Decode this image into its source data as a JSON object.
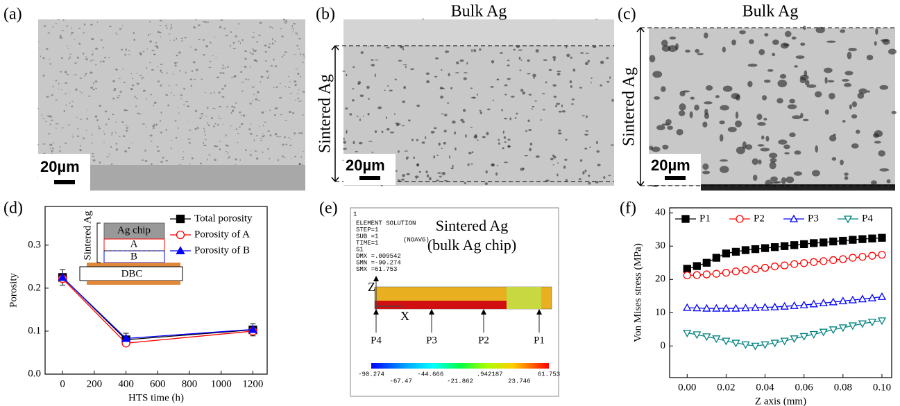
{
  "panels": {
    "a": {
      "label": "(a)",
      "scale": "20µm"
    },
    "b": {
      "label": "(b)",
      "top": "Bulk Ag",
      "side": "Sintered Ag",
      "scale": "20µm"
    },
    "c": {
      "label": "(c)",
      "top": "Bulk Ag",
      "side": "Sintered Ag",
      "scale": "20µm"
    },
    "d": {
      "label": "(d)"
    },
    "e": {
      "label": "(e)",
      "corner": "1",
      "solution": [
        "ELEMENT SOLUTION",
        "STEP=1",
        "SUB =1",
        "TIME=1",
        "S1",
        "DMX =.009542",
        "SMN =-90.274",
        "SMX =61.753"
      ],
      "noavg": "(NOAVG)",
      "title": [
        "Sintered Ag",
        "(bulk Ag chip)"
      ],
      "axes": [
        "Z",
        "X"
      ],
      "points": [
        "P4",
        "P3",
        "P2",
        "P1"
      ],
      "scale_top": [
        "-90.274",
        "-44.666",
        ".942187",
        "61.753"
      ],
      "scale_bottom": [
        "-67.47",
        "-21.862",
        "23.746"
      ]
    },
    "f": {
      "label": "(f)"
    }
  },
  "chart_data": [
    {
      "type": "line",
      "x_label": "HTS time (h)",
      "y_label": "Porosity",
      "x": [
        0,
        400,
        1200
      ],
      "xlim": [
        -110,
        1290
      ],
      "xticks": [
        0,
        200,
        400,
        600,
        800,
        1000,
        1200
      ],
      "ylim": [
        0,
        0.39
      ],
      "yticks": [
        {
          "value": 0,
          "label": "0.0"
        },
        0.1,
        0.2,
        0.3
      ],
      "legend": "top-right",
      "annotations": {
        "chip": "Ag chip",
        "a": "A",
        "b": "B",
        "dbc": "DBC",
        "layer": "Sintered Ag"
      },
      "series": [
        {
          "name": "Total porosity",
          "color": "#000000",
          "marker": "square",
          "filled": true,
          "values": [
            0.225,
            0.08,
            0.103
          ],
          "errors": [
            0.018,
            0.015,
            0.014
          ]
        },
        {
          "name": "Porosity of A",
          "color": "#ff0000",
          "marker": "circle",
          "filled": false,
          "values": [
            0.222,
            0.072,
            0.1
          ]
        },
        {
          "name": "Porosity of B",
          "color": "#0000ff",
          "marker": "triangle-up",
          "filled": true,
          "values": [
            0.225,
            0.083,
            0.104
          ]
        }
      ]
    },
    {
      "type": "line",
      "x_label": "Z axis (mm)",
      "y_label": "Von Mises stress (MPa)",
      "x": [
        0,
        0.005,
        0.01,
        0.015,
        0.02,
        0.025,
        0.03,
        0.035,
        0.04,
        0.045,
        0.05,
        0.055,
        0.06,
        0.065,
        0.07,
        0.075,
        0.08,
        0.085,
        0.09,
        0.095,
        0.1
      ],
      "xlim": [
        -0.009,
        0.105
      ],
      "xticks": [
        {
          "value": 0,
          "label": "0.00"
        },
        0.02,
        0.04,
        0.06,
        0.08,
        {
          "value": 0.1,
          "label": "0.10"
        }
      ],
      "ylim": [
        -9.5,
        41.5
      ],
      "yticks": [
        0,
        10,
        20,
        30,
        40
      ],
      "legend": "top",
      "series": [
        {
          "name": "P1",
          "color": "#000000",
          "marker": "square",
          "filled": true,
          "values": [
            23.2,
            24,
            25,
            26.5,
            27.8,
            28.3,
            28.8,
            29.1,
            29.4,
            29.7,
            30,
            30.3,
            30.6,
            30.9,
            31.1,
            31.4,
            31.6,
            31.9,
            32.1,
            32.3,
            32.5
          ]
        },
        {
          "name": "P2",
          "color": "#ff0000",
          "marker": "circle",
          "filled": false,
          "values": [
            21.2,
            21.3,
            21.5,
            21.7,
            22,
            22.4,
            22.8,
            23.1,
            23.5,
            23.9,
            24.2,
            24.6,
            24.9,
            25.2,
            25.5,
            25.8,
            26.1,
            26.5,
            26.8,
            27.1,
            27.4
          ]
        },
        {
          "name": "P3",
          "color": "#0000ff",
          "marker": "triangle-up",
          "filled": false,
          "values": [
            11.5,
            11.4,
            11.3,
            11.3,
            11.3,
            11.3,
            11.4,
            11.5,
            11.6,
            11.7,
            11.9,
            12.1,
            12.3,
            12.6,
            12.9,
            13.2,
            13.5,
            13.8,
            14.1,
            14.4,
            14.8
          ]
        },
        {
          "name": "P4",
          "color": "#008080",
          "marker": "triangle-down",
          "filled": false,
          "values": [
            3.9,
            3.4,
            2.8,
            2.2,
            1.5,
            0.9,
            0.4,
            0,
            0.4,
            0.9,
            1.5,
            2.2,
            2.9,
            3.5,
            4.2,
            4.9,
            5.5,
            6.1,
            6.7,
            7.2,
            7.6
          ]
        }
      ]
    }
  ]
}
